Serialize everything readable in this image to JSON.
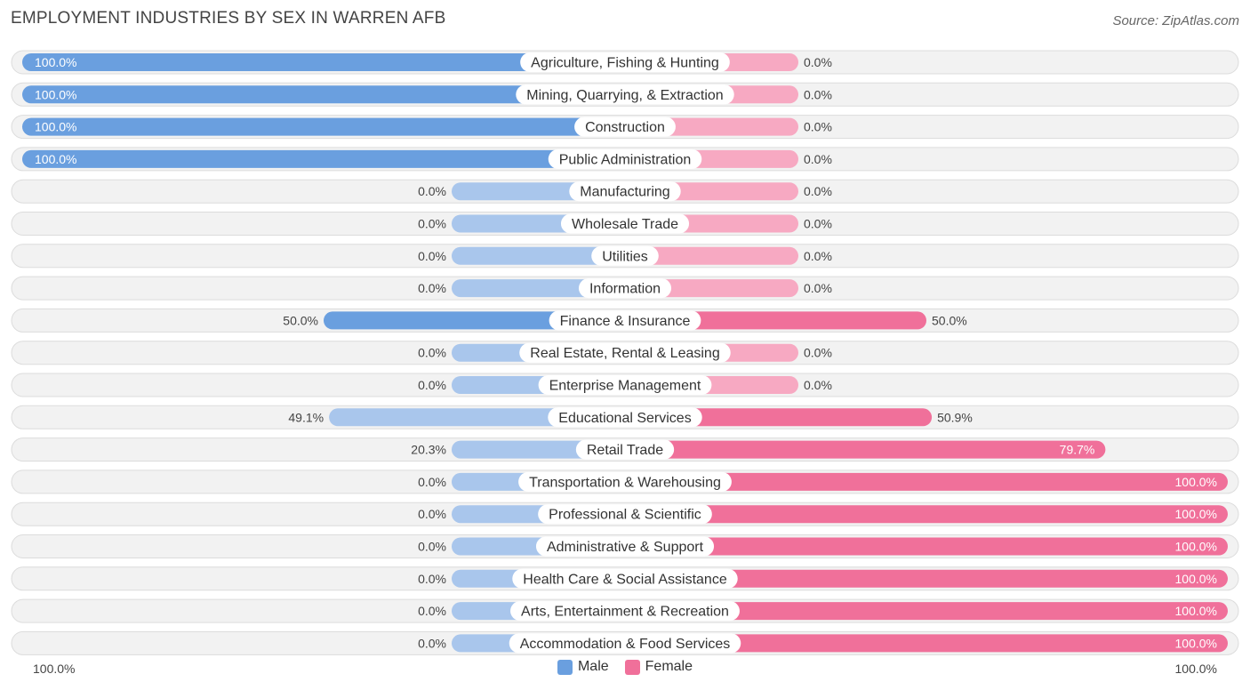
{
  "title": "EMPLOYMENT INDUSTRIES BY SEX IN WARREN AFB",
  "source": "Source: ZipAtlas.com",
  "legend": {
    "male": "Male",
    "female": "Female"
  },
  "axis": {
    "left_label": "100.0%",
    "right_label": "100.0%"
  },
  "colors": {
    "male_strong": "#6a9fdf",
    "male_light": "#a9c6ec",
    "female_strong": "#f0709a",
    "female_light": "#f7a9c2",
    "row_bg": "#f2f2f2",
    "row_border": "#dcdcdc"
  },
  "chart_data": {
    "type": "bar",
    "orientation": "horizontal-diverging",
    "xlim": [
      -100,
      100
    ],
    "series": [
      {
        "name": "Male",
        "values": [
          100,
          100,
          100,
          100,
          0,
          0,
          0,
          0,
          50,
          0,
          0,
          49.1,
          20.3,
          0,
          0,
          0,
          0,
          0,
          0
        ]
      },
      {
        "name": "Female",
        "values": [
          0,
          0,
          0,
          0,
          0,
          0,
          0,
          0,
          50,
          0,
          0,
          50.9,
          79.7,
          100,
          100,
          100,
          100,
          100,
          100
        ]
      }
    ],
    "categories": [
      "Agriculture, Fishing & Hunting",
      "Mining, Quarrying, & Extraction",
      "Construction",
      "Public Administration",
      "Manufacturing",
      "Wholesale Trade",
      "Utilities",
      "Information",
      "Finance & Insurance",
      "Real Estate, Rental & Leasing",
      "Enterprise Management",
      "Educational Services",
      "Retail Trade",
      "Transportation & Warehousing",
      "Professional & Scientific",
      "Administrative & Support",
      "Health Care & Social Assistance",
      "Arts, Entertainment & Recreation",
      "Accommodation & Food Services"
    ],
    "male_labels": [
      "100.0%",
      "100.0%",
      "100.0%",
      "100.0%",
      "0.0%",
      "0.0%",
      "0.0%",
      "0.0%",
      "50.0%",
      "0.0%",
      "0.0%",
      "49.1%",
      "20.3%",
      "0.0%",
      "0.0%",
      "0.0%",
      "0.0%",
      "0.0%",
      "0.0%"
    ],
    "female_labels": [
      "0.0%",
      "0.0%",
      "0.0%",
      "0.0%",
      "0.0%",
      "0.0%",
      "0.0%",
      "0.0%",
      "50.0%",
      "0.0%",
      "0.0%",
      "50.9%",
      "79.7%",
      "100.0%",
      "100.0%",
      "100.0%",
      "100.0%",
      "100.0%",
      "100.0%"
    ]
  }
}
